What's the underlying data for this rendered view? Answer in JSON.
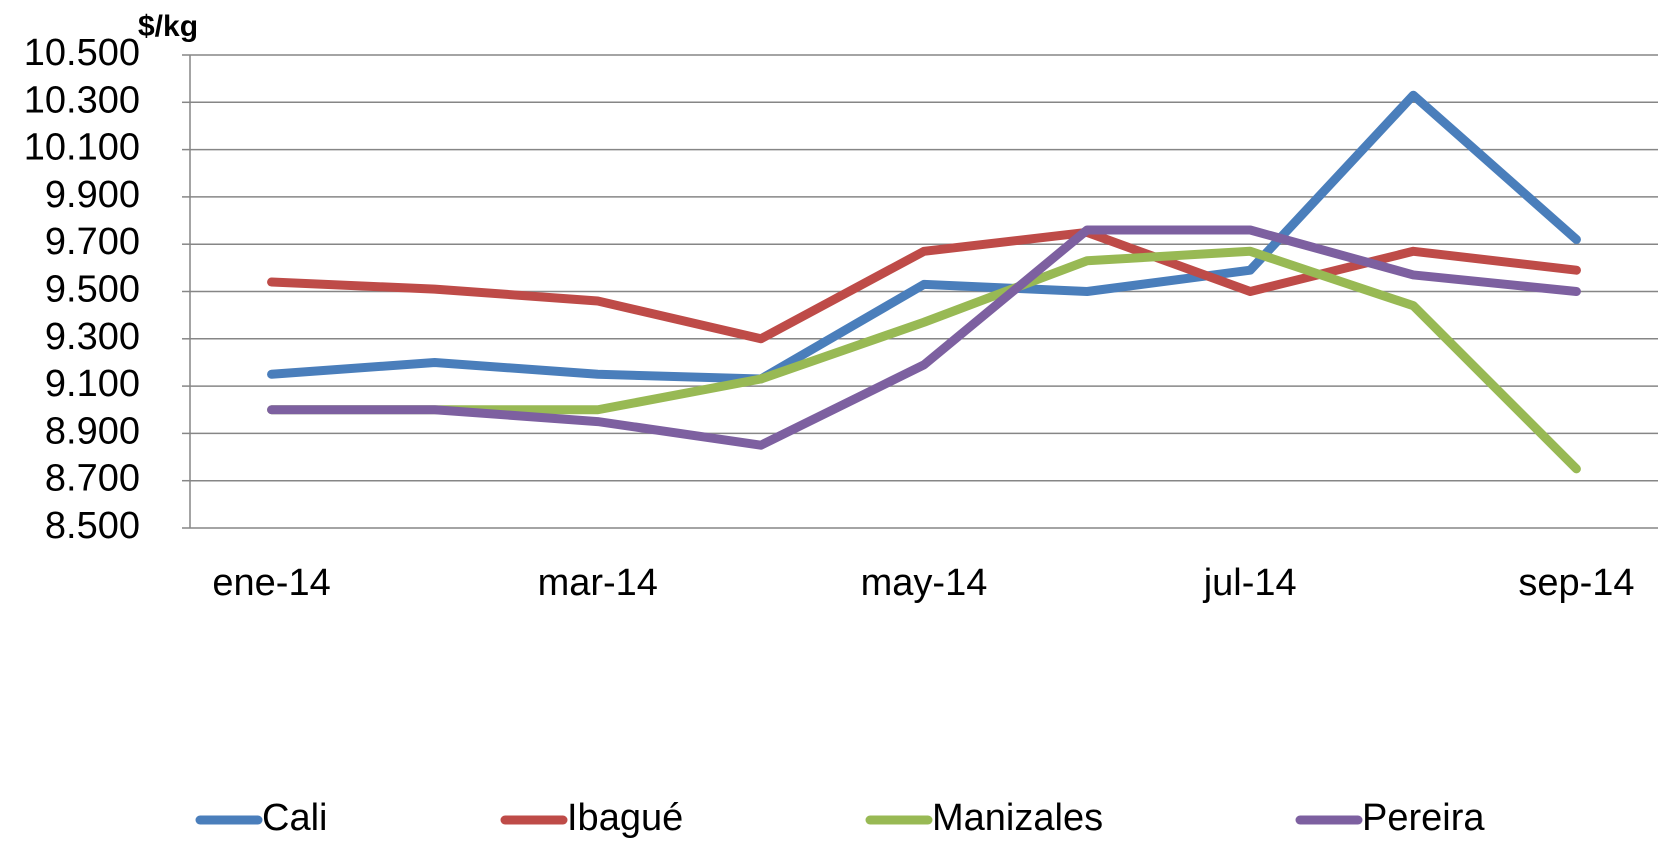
{
  "chart_data": {
    "type": "line",
    "y_label": "$/kg",
    "categories": [
      "ene-14",
      null,
      "mar-14",
      null,
      "may-14",
      null,
      "jul-14",
      null,
      "sep-14"
    ],
    "series": [
      {
        "name": "Cali",
        "color": "#4a7ebb",
        "values": [
          9150,
          9200,
          9150,
          9130,
          9530,
          9500,
          9590,
          10330,
          9720
        ]
      },
      {
        "name": "Ibagué",
        "color": "#be4b48",
        "values": [
          9540,
          9510,
          9460,
          9300,
          9670,
          9750,
          9500,
          9670,
          9590
        ]
      },
      {
        "name": "Manizales",
        "color": "#98b954",
        "values": [
          9000,
          9000,
          9000,
          9130,
          9370,
          9630,
          9670,
          9440,
          8750
        ]
      },
      {
        "name": "Pereira",
        "color": "#7d60a0",
        "values": [
          9000,
          9000,
          8950,
          8850,
          9190,
          9760,
          9760,
          9570,
          9500
        ]
      }
    ],
    "ylim": [
      8500,
      10500
    ],
    "yticks": [
      {
        "value": 8500,
        "label": "8.500"
      },
      {
        "value": 8700,
        "label": "8.700"
      },
      {
        "value": 8900,
        "label": "8.900"
      },
      {
        "value": 9100,
        "label": "9.100"
      },
      {
        "value": 9300,
        "label": "9.300"
      },
      {
        "value": 9500,
        "label": "9.500"
      },
      {
        "value": 9700,
        "label": "9.700"
      },
      {
        "value": 9900,
        "label": "9.900"
      },
      {
        "value": 10100,
        "label": "10.100"
      },
      {
        "value": 10300,
        "label": "10.300"
      },
      {
        "value": 10500,
        "label": "10.500"
      }
    ],
    "grid": true,
    "legend": "bottom"
  }
}
